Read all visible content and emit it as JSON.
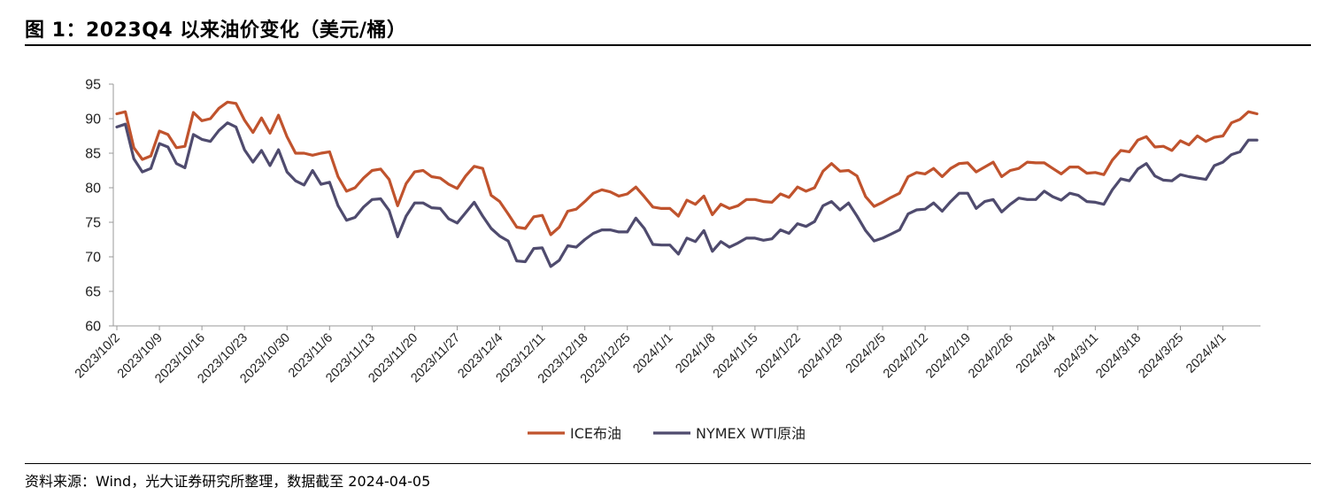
{
  "header": {
    "title": "图 1：2023Q4 以来油价变化（美元/桶）"
  },
  "footer": {
    "source": "资料来源：Wind，光大证券研究所整理，数据截至 2024-04-05"
  },
  "colors": {
    "ice": "#C0532D",
    "wti": "#4F4B6E",
    "axis": "#999999"
  },
  "chart_data": {
    "type": "line",
    "title": "图 1：2023Q4 以来油价变化（美元/桶）",
    "ylim": [
      60,
      95
    ],
    "yticks": [
      60,
      65,
      70,
      75,
      80,
      85,
      90,
      95
    ],
    "grid": false,
    "legend_position": "bottom-center",
    "x": [
      "2023/10/2",
      "2023/10/3",
      "2023/10/4",
      "2023/10/5",
      "2023/10/6",
      "2023/10/9",
      "2023/10/10",
      "2023/10/11",
      "2023/10/12",
      "2023/10/13",
      "2023/10/16",
      "2023/10/17",
      "2023/10/18",
      "2023/10/19",
      "2023/10/20",
      "2023/10/23",
      "2023/10/24",
      "2023/10/25",
      "2023/10/26",
      "2023/10/27",
      "2023/10/30",
      "2023/10/31",
      "2023/11/1",
      "2023/11/2",
      "2023/11/3",
      "2023/11/6",
      "2023/11/7",
      "2023/11/8",
      "2023/11/9",
      "2023/11/10",
      "2023/11/13",
      "2023/11/14",
      "2023/11/15",
      "2023/11/16",
      "2023/11/17",
      "2023/11/20",
      "2023/11/21",
      "2023/11/22",
      "2023/11/23",
      "2023/11/24",
      "2023/11/27",
      "2023/11/28",
      "2023/11/29",
      "2023/11/30",
      "2023/12/1",
      "2023/12/4",
      "2023/12/5",
      "2023/12/6",
      "2023/12/7",
      "2023/12/8",
      "2023/12/11",
      "2023/12/12",
      "2023/12/13",
      "2023/12/14",
      "2023/12/15",
      "2023/12/18",
      "2023/12/19",
      "2023/12/20",
      "2023/12/21",
      "2023/12/22",
      "2023/12/25",
      "2023/12/26",
      "2023/12/27",
      "2023/12/28",
      "2023/12/29",
      "2024/1/1",
      "2024/1/2",
      "2024/1/3",
      "2024/1/4",
      "2024/1/5",
      "2024/1/8",
      "2024/1/9",
      "2024/1/10",
      "2024/1/11",
      "2024/1/12",
      "2024/1/15",
      "2024/1/16",
      "2024/1/17",
      "2024/1/18",
      "2024/1/19",
      "2024/1/22",
      "2024/1/23",
      "2024/1/24",
      "2024/1/25",
      "2024/1/26",
      "2024/1/29",
      "2024/1/30",
      "2024/1/31",
      "2024/2/1",
      "2024/2/2",
      "2024/2/5",
      "2024/2/6",
      "2024/2/7",
      "2024/2/8",
      "2024/2/9",
      "2024/2/12",
      "2024/2/13",
      "2024/2/14",
      "2024/2/15",
      "2024/2/16",
      "2024/2/19",
      "2024/2/20",
      "2024/2/21",
      "2024/2/22",
      "2024/2/23",
      "2024/2/26",
      "2024/2/27",
      "2024/2/28",
      "2024/2/29",
      "2024/3/1",
      "2024/3/4",
      "2024/3/5",
      "2024/3/6",
      "2024/3/7",
      "2024/3/8",
      "2024/3/11",
      "2024/3/12",
      "2024/3/13",
      "2024/3/14",
      "2024/3/15",
      "2024/3/18",
      "2024/3/19",
      "2024/3/20",
      "2024/3/21",
      "2024/3/22",
      "2024/3/25",
      "2024/3/26",
      "2024/3/27",
      "2024/3/28",
      "2024/3/29",
      "2024/4/1",
      "2024/4/2",
      "2024/4/3",
      "2024/4/4",
      "2024/4/5"
    ],
    "x_tick_labels": [
      "2023/10/2",
      "2023/10/9",
      "2023/10/16",
      "2023/10/23",
      "2023/10/30",
      "2023/11/6",
      "2023/11/13",
      "2023/11/20",
      "2023/11/27",
      "2023/12/4",
      "2023/12/11",
      "2023/12/18",
      "2023/12/25",
      "2024/1/1",
      "2024/1/8",
      "2024/1/15",
      "2024/1/22",
      "2024/1/29",
      "2024/2/5",
      "2024/2/12",
      "2024/2/19",
      "2024/2/26",
      "2024/3/4",
      "2024/3/11",
      "2024/3/18",
      "2024/3/25",
      "2024/4/1"
    ],
    "series": [
      {
        "name": "ICE布油",
        "color": "#C0532D",
        "values": [
          90.7,
          91.0,
          85.8,
          84.1,
          84.6,
          88.2,
          87.7,
          85.8,
          86.0,
          90.9,
          89.7,
          90.0,
          91.5,
          92.4,
          92.2,
          89.8,
          88.0,
          90.1,
          87.9,
          90.5,
          87.4,
          85.0,
          85.0,
          84.7,
          85.0,
          85.2,
          81.6,
          79.5,
          80.0,
          81.4,
          82.5,
          82.7,
          81.2,
          77.4,
          80.6,
          82.3,
          82.5,
          81.6,
          81.4,
          80.5,
          79.9,
          81.7,
          83.1,
          82.8,
          78.9,
          78.0,
          76.2,
          74.3,
          74.1,
          75.8,
          76.0,
          73.2,
          74.3,
          76.6,
          76.9,
          78.0,
          79.2,
          79.7,
          79.4,
          78.8,
          79.1,
          80.1,
          78.7,
          77.2,
          77.0,
          77.0,
          75.9,
          78.2,
          77.6,
          78.8,
          76.1,
          77.6,
          77.0,
          77.4,
          78.3,
          78.3,
          78.0,
          77.9,
          79.1,
          78.6,
          80.1,
          79.5,
          80.0,
          82.4,
          83.5,
          82.4,
          82.5,
          81.7,
          78.7,
          77.3,
          77.9,
          78.6,
          79.2,
          81.6,
          82.2,
          82.0,
          82.8,
          81.6,
          82.8,
          83.5,
          83.6,
          82.3,
          83.0,
          83.7,
          81.6,
          82.5,
          82.8,
          83.7,
          83.6,
          83.6,
          82.8,
          82.0,
          83.0,
          83.0,
          82.1,
          82.2,
          81.9,
          84.0,
          85.4,
          85.2,
          86.9,
          87.4,
          85.9,
          86.0,
          85.4,
          86.8,
          86.2,
          87.5,
          86.7,
          87.3,
          87.5,
          89.4,
          89.9,
          91.0,
          90.7
        ],
        "description_note": ""
      },
      {
        "name": "NYMEX WTI原油",
        "color": "#4F4B6E",
        "values": [
          88.8,
          89.2,
          84.2,
          82.3,
          82.8,
          86.4,
          85.9,
          83.5,
          82.9,
          87.7,
          87.0,
          86.7,
          88.3,
          89.4,
          88.8,
          85.5,
          83.7,
          85.4,
          83.2,
          85.5,
          82.3,
          81.0,
          80.4,
          82.5,
          80.5,
          80.8,
          77.4,
          75.3,
          75.7,
          77.2,
          78.3,
          78.4,
          76.7,
          72.9,
          75.9,
          77.8,
          77.8,
          77.1,
          77.0,
          75.5,
          74.9,
          76.4,
          77.9,
          75.9,
          74.1,
          73.0,
          72.3,
          69.4,
          69.3,
          71.2,
          71.3,
          68.6,
          69.5,
          71.6,
          71.4,
          72.5,
          73.4,
          73.9,
          73.9,
          73.6,
          73.6,
          75.6,
          74.1,
          71.8,
          71.7,
          71.7,
          70.4,
          72.7,
          72.2,
          73.8,
          70.8,
          72.2,
          71.4,
          72.0,
          72.7,
          72.7,
          72.4,
          72.6,
          73.9,
          73.4,
          74.8,
          74.4,
          75.1,
          77.4,
          78.0,
          76.8,
          77.8,
          75.9,
          73.8,
          72.3,
          72.7,
          73.3,
          73.9,
          76.2,
          76.8,
          76.9,
          77.8,
          76.6,
          78.0,
          79.2,
          79.2,
          77.0,
          78.0,
          78.3,
          76.5,
          77.6,
          78.5,
          78.3,
          78.3,
          79.5,
          78.7,
          78.2,
          79.2,
          78.9,
          78.0,
          77.9,
          77.6,
          79.7,
          81.3,
          81.0,
          82.7,
          83.5,
          81.7,
          81.1,
          81.0,
          81.9,
          81.6,
          81.4,
          81.2,
          83.2,
          83.7,
          84.8,
          85.2,
          86.9,
          86.9
        ],
        "description_note": ""
      }
    ]
  }
}
